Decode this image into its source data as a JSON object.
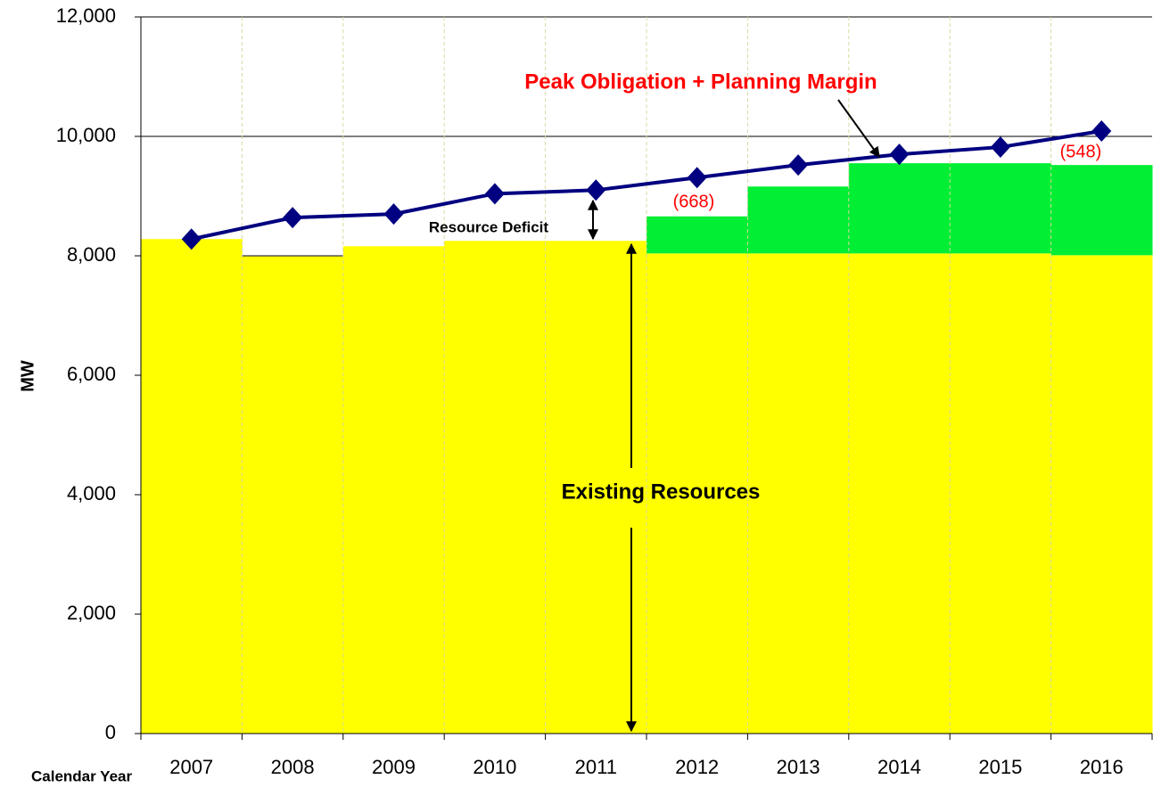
{
  "chart_data": {
    "type": "stacked_bar_line",
    "y_axis_label": "MW",
    "x_axis_label": "Calendar Year",
    "categories": [
      "2007",
      "2008",
      "2009",
      "2010",
      "2011",
      "2012",
      "2013",
      "2014",
      "2015",
      "2016"
    ],
    "series": [
      {
        "name": "Existing Resources",
        "color": "#ffff00",
        "values": [
          8280,
          7990,
          8160,
          8250,
          8250,
          8040,
          8040,
          8040,
          8040,
          8010
        ]
      },
      {
        "color": "#00ee33",
        "values": [
          0,
          0,
          0,
          0,
          0,
          620,
          1120,
          1510,
          1510,
          1510
        ]
      },
      {
        "name": "Peak Obligation + Planning Margin",
        "color": "#000080",
        "kind": "line",
        "values": [
          8280,
          8640,
          8700,
          9040,
          9100,
          9310,
          9520,
          9700,
          9820,
          10090
        ]
      }
    ],
    "annotations": [
      "Resource Deficit",
      "(668)",
      "(548)"
    ],
    "ylim": [
      0,
      12000
    ],
    "yticks": [
      0,
      {
        "value": 2000,
        "label": "2,000"
      },
      {
        "value": 4000,
        "label": "4,000"
      },
      {
        "value": 6000,
        "label": "6,000"
      },
      {
        "value": 8000,
        "label": "8,000"
      },
      {
        "value": 10000,
        "label": "10,000"
      },
      {
        "value": 12000,
        "label": "12,000"
      }
    ],
    "grid": true
  }
}
